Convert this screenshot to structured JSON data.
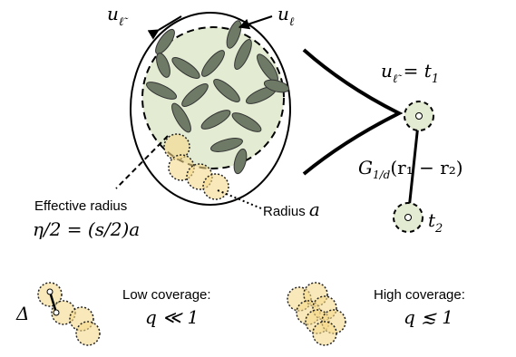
{
  "labels": {
    "u_tilde": {
      "base": "u",
      "sub": "ℓ̃"
    },
    "u_ell": {
      "base": "u",
      "sub": "ℓ"
    },
    "node1": {
      "base": "u",
      "sub": "ℓ̃",
      "rest": " = t",
      "rest_sub": "1"
    },
    "kernel": {
      "base": "G",
      "sub": "1/d",
      "rest": "(r₁ − r₂)"
    },
    "node2": {
      "base": "t",
      "sub": "2"
    },
    "effective_radius": "Effective radius",
    "eta_formula": "η/2 = (s/2)a",
    "radius": {
      "text": "Radius ",
      "symbol": "a"
    },
    "delta": "Δ",
    "low_coverage": {
      "title": "Low coverage:",
      "formula": "q ≪ 1"
    },
    "high_coverage": {
      "title": "High coverage:",
      "formula": "q ≲ 1"
    }
  }
}
